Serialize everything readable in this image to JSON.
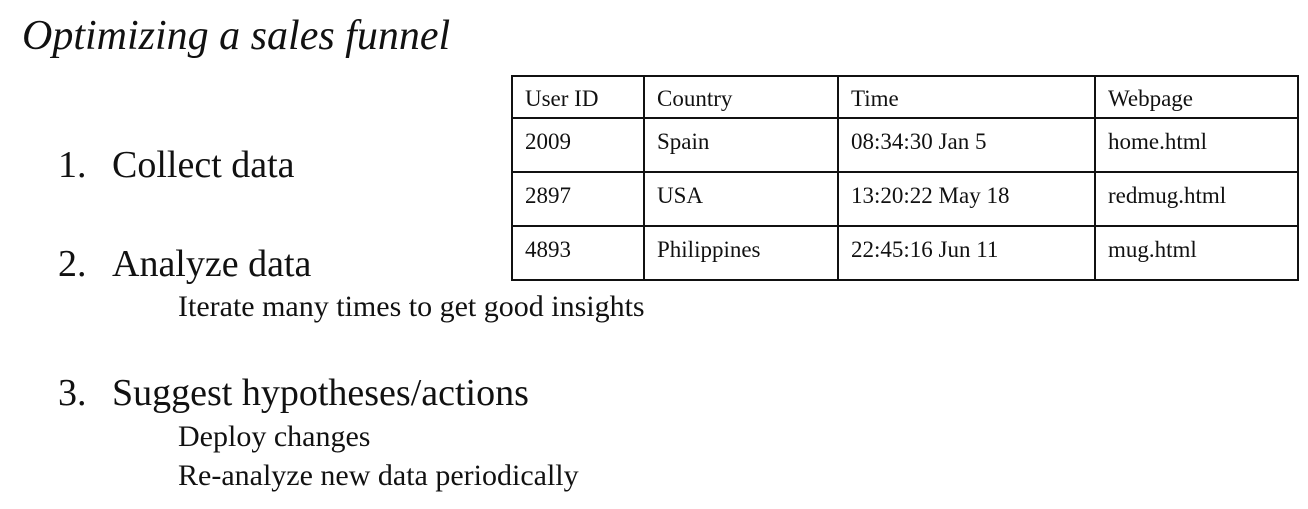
{
  "title": "Optimizing a sales funnel",
  "steps": [
    {
      "number": "1.",
      "label": "Collect data",
      "subitems": []
    },
    {
      "number": "2.",
      "label": "Analyze data",
      "subitems": [
        "Iterate many times to get good insights"
      ]
    },
    {
      "number": "3.",
      "label": "Suggest hypotheses/actions",
      "subitems": [
        "Deploy changes",
        "Re-analyze new data periodically"
      ]
    }
  ],
  "table": {
    "headers": [
      "User ID",
      "Country",
      "Time",
      "Webpage"
    ],
    "rows": [
      [
        "2009",
        "Spain",
        "08:34:30 Jan 5",
        "home.html"
      ],
      [
        "2897",
        "USA",
        "13:20:22 May 18",
        "redmug.html"
      ],
      [
        "4893",
        "Philippines",
        "22:45:16 Jun 11",
        "mug.html"
      ]
    ]
  }
}
